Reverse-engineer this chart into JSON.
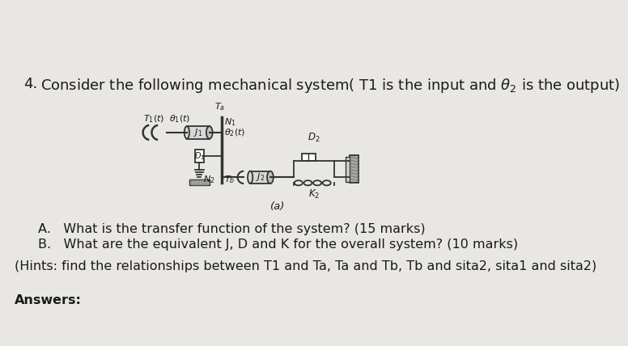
{
  "background_color": "#e9e7e4",
  "title_number": "4.",
  "question_A": "A.   What is the transfer function of the system? (15 marks)",
  "question_B": "B.   What are the equivalent J, D and K for the overall system? (10 marks)",
  "hints": "(Hints: find the relationships between T1 and Ta, Ta and Tb, Tb and sita2, sita1 and sita2)",
  "answers_label": "Answers:",
  "diagram_label": "(a)",
  "font_size_title": 13,
  "font_size_body": 12,
  "text_color": "#1a1a1a",
  "diagram_color": "#333333",
  "title_full": "Consider the following mechanical system( T1 is the input and θ₂ is the output)"
}
